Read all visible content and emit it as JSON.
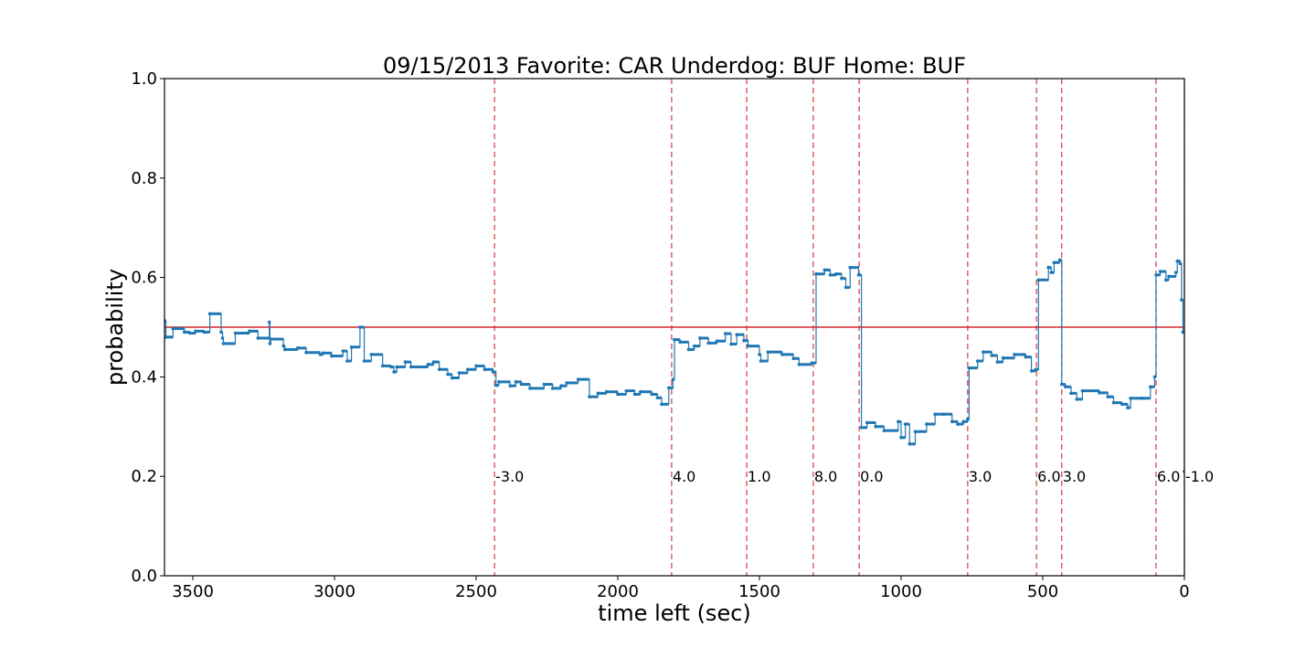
{
  "chart_data": {
    "type": "line",
    "title": "09/15/2013 Favorite: CAR Underdog: BUF Home: BUF",
    "xlabel": "time left (sec)",
    "ylabel": "probability",
    "xlim": [
      3600,
      0
    ],
    "ylim": [
      0.0,
      1.0
    ],
    "xticks": [
      3500,
      3000,
      2500,
      2000,
      1500,
      1000,
      500,
      0
    ],
    "yticks": [
      0.0,
      0.2,
      0.4,
      0.6,
      0.8,
      1.0
    ],
    "xtick_labels": [
      "3500",
      "3000",
      "2500",
      "2000",
      "1500",
      "1000",
      "500",
      "0"
    ],
    "ytick_labels": [
      "0.0",
      "0.2",
      "0.4",
      "0.6",
      "0.8",
      "1.0"
    ],
    "grid": false,
    "reference_line": {
      "y": 0.5,
      "color": "#d62728"
    },
    "series": [
      {
        "color": "#1f77b4",
        "step": true,
        "points": [
          [
            3600,
            0.513
          ],
          [
            3595,
            0.48
          ],
          [
            3570,
            0.497
          ],
          [
            3530,
            0.49
          ],
          [
            3510,
            0.488
          ],
          [
            3490,
            0.492
          ],
          [
            3460,
            0.49
          ],
          [
            3440,
            0.527
          ],
          [
            3400,
            0.49
          ],
          [
            3395,
            0.478
          ],
          [
            3392,
            0.467
          ],
          [
            3350,
            0.488
          ],
          [
            3300,
            0.492
          ],
          [
            3270,
            0.478
          ],
          [
            3230,
            0.51
          ],
          [
            3228,
            0.467
          ],
          [
            3225,
            0.476
          ],
          [
            3180,
            0.462
          ],
          [
            3175,
            0.455
          ],
          [
            3130,
            0.458
          ],
          [
            3100,
            0.449
          ],
          [
            3050,
            0.445
          ],
          [
            3040,
            0.448
          ],
          [
            3010,
            0.442
          ],
          [
            2970,
            0.452
          ],
          [
            2955,
            0.432
          ],
          [
            2940,
            0.46
          ],
          [
            2910,
            0.5
          ],
          [
            2895,
            0.432
          ],
          [
            2870,
            0.445
          ],
          [
            2830,
            0.422
          ],
          [
            2800,
            0.42
          ],
          [
            2790,
            0.41
          ],
          [
            2780,
            0.42
          ],
          [
            2750,
            0.43
          ],
          [
            2730,
            0.42
          ],
          [
            2670,
            0.425
          ],
          [
            2650,
            0.43
          ],
          [
            2630,
            0.415
          ],
          [
            2600,
            0.405
          ],
          [
            2585,
            0.398
          ],
          [
            2560,
            0.408
          ],
          [
            2530,
            0.415
          ],
          [
            2500,
            0.422
          ],
          [
            2470,
            0.415
          ],
          [
            2440,
            0.41
          ],
          [
            2430,
            0.383
          ],
          [
            2420,
            0.39
          ],
          [
            2380,
            0.382
          ],
          [
            2360,
            0.39
          ],
          [
            2340,
            0.385
          ],
          [
            2310,
            0.377
          ],
          [
            2260,
            0.385
          ],
          [
            2230,
            0.377
          ],
          [
            2200,
            0.382
          ],
          [
            2180,
            0.388
          ],
          [
            2140,
            0.395
          ],
          [
            2100,
            0.36
          ],
          [
            2070,
            0.367
          ],
          [
            2040,
            0.37
          ],
          [
            2000,
            0.365
          ],
          [
            1970,
            0.372
          ],
          [
            1940,
            0.365
          ],
          [
            1920,
            0.37
          ],
          [
            1880,
            0.365
          ],
          [
            1860,
            0.358
          ],
          [
            1845,
            0.345
          ],
          [
            1820,
            0.378
          ],
          [
            1805,
            0.395
          ],
          [
            1800,
            0.475
          ],
          [
            1780,
            0.47
          ],
          [
            1750,
            0.455
          ],
          [
            1730,
            0.462
          ],
          [
            1710,
            0.478
          ],
          [
            1680,
            0.468
          ],
          [
            1650,
            0.472
          ],
          [
            1620,
            0.487
          ],
          [
            1600,
            0.466
          ],
          [
            1580,
            0.485
          ],
          [
            1555,
            0.473
          ],
          [
            1540,
            0.462
          ],
          [
            1500,
            0.445
          ],
          [
            1495,
            0.432
          ],
          [
            1470,
            0.45
          ],
          [
            1420,
            0.445
          ],
          [
            1380,
            0.437
          ],
          [
            1360,
            0.425
          ],
          [
            1315,
            0.428
          ],
          [
            1300,
            0.607
          ],
          [
            1270,
            0.615
          ],
          [
            1250,
            0.605
          ],
          [
            1230,
            0.607
          ],
          [
            1210,
            0.598
          ],
          [
            1195,
            0.58
          ],
          [
            1180,
            0.62
          ],
          [
            1150,
            0.605
          ],
          [
            1140,
            0.298
          ],
          [
            1120,
            0.308
          ],
          [
            1090,
            0.3
          ],
          [
            1060,
            0.292
          ],
          [
            1010,
            0.31
          ],
          [
            1000,
            0.278
          ],
          [
            985,
            0.305
          ],
          [
            970,
            0.265
          ],
          [
            950,
            0.29
          ],
          [
            910,
            0.305
          ],
          [
            880,
            0.325
          ],
          [
            850,
            0.325
          ],
          [
            820,
            0.31
          ],
          [
            800,
            0.305
          ],
          [
            780,
            0.31
          ],
          [
            765,
            0.315
          ],
          [
            760,
            0.418
          ],
          [
            730,
            0.432
          ],
          [
            710,
            0.45
          ],
          [
            680,
            0.443
          ],
          [
            660,
            0.43
          ],
          [
            640,
            0.438
          ],
          [
            600,
            0.445
          ],
          [
            560,
            0.44
          ],
          [
            540,
            0.412
          ],
          [
            525,
            0.415
          ],
          [
            515,
            0.595
          ],
          [
            480,
            0.62
          ],
          [
            470,
            0.61
          ],
          [
            460,
            0.63
          ],
          [
            440,
            0.635
          ],
          [
            433,
            0.385
          ],
          [
            420,
            0.38
          ],
          [
            400,
            0.367
          ],
          [
            380,
            0.355
          ],
          [
            360,
            0.372
          ],
          [
            300,
            0.368
          ],
          [
            270,
            0.36
          ],
          [
            250,
            0.348
          ],
          [
            220,
            0.345
          ],
          [
            200,
            0.338
          ],
          [
            190,
            0.357
          ],
          [
            150,
            0.357
          ],
          [
            120,
            0.38
          ],
          [
            105,
            0.4
          ],
          [
            100,
            0.605
          ],
          [
            85,
            0.612
          ],
          [
            65,
            0.595
          ],
          [
            55,
            0.602
          ],
          [
            30,
            0.61
          ],
          [
            25,
            0.633
          ],
          [
            15,
            0.628
          ],
          [
            10,
            0.555
          ],
          [
            5,
            0.49
          ],
          [
            0,
            0.21
          ]
        ]
      }
    ],
    "annotations": [
      {
        "x": 2435,
        "label": "-3.0"
      },
      {
        "x": 1810,
        "label": "4.0"
      },
      {
        "x": 1545,
        "label": "1.0"
      },
      {
        "x": 1310,
        "label": "8.0"
      },
      {
        "x": 1148,
        "label": "0.0"
      },
      {
        "x": 765,
        "label": "3.0"
      },
      {
        "x": 522,
        "label": "6.0"
      },
      {
        "x": 433,
        "label": "3.0"
      },
      {
        "x": 100,
        "label": "6.0"
      },
      {
        "x": 0,
        "label": "-1.0"
      }
    ],
    "annotation_y": 0.2,
    "annotation_line_color": "#d62728"
  }
}
